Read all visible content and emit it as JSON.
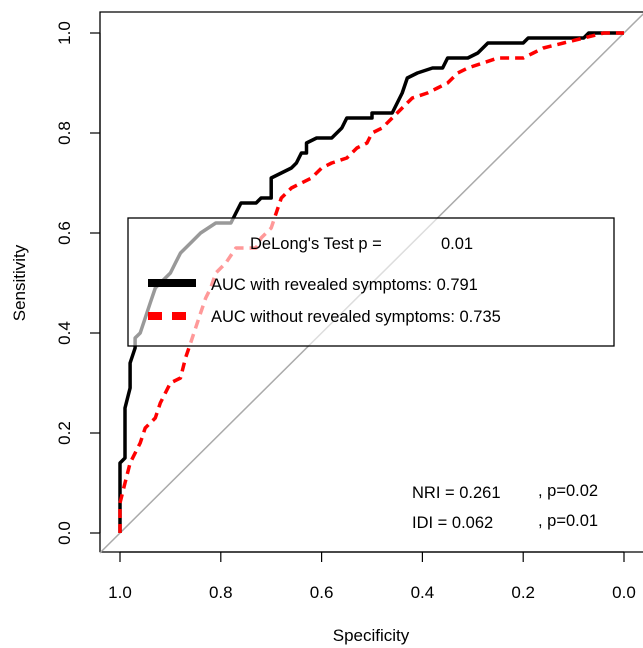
{
  "chart_data": {
    "type": "line",
    "xlabel": "Specificity",
    "ylabel": "Sensitivity",
    "xlim": [
      1.0,
      0.0
    ],
    "ylim": [
      0.0,
      1.0
    ],
    "x_reversed": true,
    "x_ticks": [
      "1.0",
      "0.8",
      "0.6",
      "0.4",
      "0.2",
      "0.0"
    ],
    "y_ticks": [
      "0.0",
      "0.2",
      "0.4",
      "0.6",
      "0.8",
      "1.0"
    ],
    "grid": false,
    "legend_position": "center-left",
    "reference_line": {
      "from": [
        1.0,
        0.0
      ],
      "to": [
        0.0,
        1.0
      ],
      "color": "#aaaaaa"
    },
    "legend": {
      "title_label": "DeLong's Test p =",
      "title_value": "0.01",
      "entries": [
        {
          "label": "AUC with revealed symptoms: 0.791",
          "color": "#000000",
          "style": "solid"
        },
        {
          "label": "AUC without revealed symptoms: 0.735",
          "color": "#ff0000",
          "style": "dashed"
        }
      ]
    },
    "annotations": [
      {
        "label": "NRI = 0.261",
        "p": ", p=0.02"
      },
      {
        "label": "IDI = 0.062",
        "p": ", p=0.01"
      }
    ],
    "series": [
      {
        "name": "AUC with revealed symptoms: 0.791",
        "color": "#000000",
        "style": "solid",
        "points": [
          [
            1.0,
            0.0
          ],
          [
            1.0,
            0.14
          ],
          [
            0.99,
            0.15
          ],
          [
            0.99,
            0.25
          ],
          [
            0.98,
            0.29
          ],
          [
            0.98,
            0.34
          ],
          [
            0.97,
            0.37
          ],
          [
            0.97,
            0.39
          ],
          [
            0.96,
            0.4
          ],
          [
            0.95,
            0.43
          ],
          [
            0.94,
            0.46
          ],
          [
            0.93,
            0.49
          ],
          [
            0.92,
            0.5
          ],
          [
            0.9,
            0.52
          ],
          [
            0.89,
            0.54
          ],
          [
            0.88,
            0.56
          ],
          [
            0.86,
            0.58
          ],
          [
            0.84,
            0.6
          ],
          [
            0.81,
            0.62
          ],
          [
            0.78,
            0.62
          ],
          [
            0.77,
            0.64
          ],
          [
            0.76,
            0.66
          ],
          [
            0.73,
            0.66
          ],
          [
            0.72,
            0.67
          ],
          [
            0.7,
            0.67
          ],
          [
            0.7,
            0.71
          ],
          [
            0.68,
            0.72
          ],
          [
            0.66,
            0.73
          ],
          [
            0.65,
            0.74
          ],
          [
            0.64,
            0.76
          ],
          [
            0.63,
            0.76
          ],
          [
            0.63,
            0.78
          ],
          [
            0.61,
            0.79
          ],
          [
            0.58,
            0.79
          ],
          [
            0.56,
            0.81
          ],
          [
            0.55,
            0.83
          ],
          [
            0.5,
            0.83
          ],
          [
            0.5,
            0.84
          ],
          [
            0.46,
            0.84
          ],
          [
            0.45,
            0.86
          ],
          [
            0.44,
            0.88
          ],
          [
            0.43,
            0.91
          ],
          [
            0.41,
            0.92
          ],
          [
            0.38,
            0.93
          ],
          [
            0.36,
            0.93
          ],
          [
            0.35,
            0.95
          ],
          [
            0.31,
            0.95
          ],
          [
            0.29,
            0.96
          ],
          [
            0.27,
            0.98
          ],
          [
            0.2,
            0.98
          ],
          [
            0.19,
            0.99
          ],
          [
            0.08,
            0.99
          ],
          [
            0.07,
            1.0
          ],
          [
            0.0,
            1.0
          ]
        ]
      },
      {
        "name": "AUC without revealed symptoms: 0.735",
        "color": "#ff0000",
        "style": "dashed",
        "points": [
          [
            1.0,
            0.0
          ],
          [
            1.0,
            0.06
          ],
          [
            0.99,
            0.1
          ],
          [
            0.98,
            0.14
          ],
          [
            0.96,
            0.18
          ],
          [
            0.95,
            0.21
          ],
          [
            0.93,
            0.23
          ],
          [
            0.92,
            0.26
          ],
          [
            0.9,
            0.3
          ],
          [
            0.88,
            0.31
          ],
          [
            0.87,
            0.35
          ],
          [
            0.86,
            0.38
          ],
          [
            0.85,
            0.41
          ],
          [
            0.84,
            0.44
          ],
          [
            0.83,
            0.47
          ],
          [
            0.82,
            0.49
          ],
          [
            0.81,
            0.52
          ],
          [
            0.79,
            0.54
          ],
          [
            0.77,
            0.57
          ],
          [
            0.73,
            0.57
          ],
          [
            0.72,
            0.59
          ],
          [
            0.7,
            0.61
          ],
          [
            0.69,
            0.64
          ],
          [
            0.68,
            0.67
          ],
          [
            0.66,
            0.69
          ],
          [
            0.64,
            0.7
          ],
          [
            0.62,
            0.71
          ],
          [
            0.6,
            0.73
          ],
          [
            0.58,
            0.74
          ],
          [
            0.55,
            0.75
          ],
          [
            0.53,
            0.77
          ],
          [
            0.51,
            0.78
          ],
          [
            0.5,
            0.8
          ],
          [
            0.48,
            0.81
          ],
          [
            0.46,
            0.83
          ],
          [
            0.44,
            0.85
          ],
          [
            0.42,
            0.87
          ],
          [
            0.39,
            0.88
          ],
          [
            0.37,
            0.89
          ],
          [
            0.35,
            0.9
          ],
          [
            0.33,
            0.92
          ],
          [
            0.31,
            0.93
          ],
          [
            0.28,
            0.94
          ],
          [
            0.25,
            0.95
          ],
          [
            0.2,
            0.95
          ],
          [
            0.18,
            0.96
          ],
          [
            0.16,
            0.97
          ],
          [
            0.12,
            0.98
          ],
          [
            0.08,
            0.99
          ],
          [
            0.04,
            1.0
          ],
          [
            0.0,
            1.0
          ]
        ]
      }
    ]
  }
}
